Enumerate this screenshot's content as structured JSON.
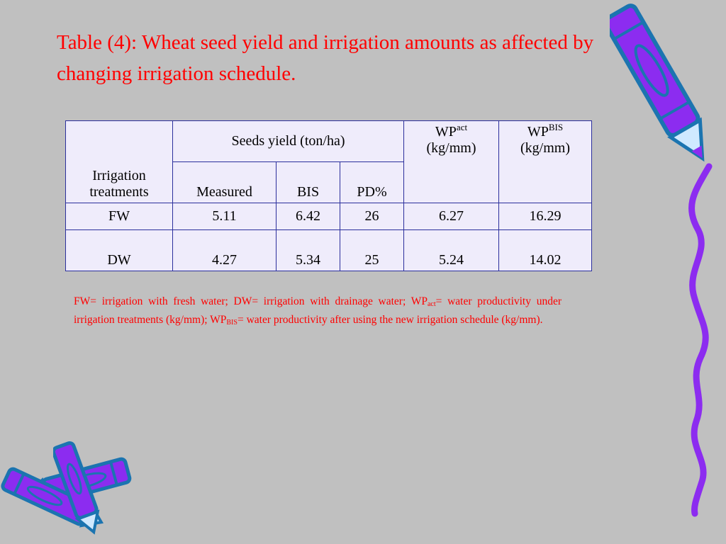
{
  "title": "Table (4): Wheat seed yield and irrigation amounts as affected by changing irrigation schedule.",
  "table": {
    "header": {
      "treatments": "Irrigation treatments",
      "seeds_yield": "Seeds yield (ton/ha)",
      "measured": "Measured",
      "bis": "BIS",
      "pd": "PD%",
      "wp_act_base": "WP",
      "wp_act_sub": "act",
      "wp_act_unit": "(kg/mm)",
      "wp_bis_base": "WP",
      "wp_bis_sub": "BIS",
      "wp_bis_unit": "(kg/mm)"
    },
    "rows": [
      {
        "treatment": "FW",
        "measured": "5.11",
        "bis": "6.42",
        "pd": "26",
        "wp_act": "6.27",
        "wp_bis": "16.29"
      },
      {
        "treatment": "DW",
        "measured": "4.27",
        "bis": "5.34",
        "pd": "25",
        "wp_act": "5.24",
        "wp_bis": "14.02"
      }
    ]
  },
  "footnote": {
    "part1": "FW= irrigation with fresh water; DW= irrigation with drainage water; WP",
    "sub1": "act",
    "part2": "= water productivity under irrigation treatments (kg/mm); WP",
    "sub2": "BIS",
    "part3": "= water productivity after using the new irrigation schedule (kg/mm)."
  },
  "colors": {
    "background": "#c0c0c0",
    "title": "#ff0000",
    "table_fill": "#efecfb",
    "table_border": "#2b2f9c",
    "crayon_purple": "#8c2cf0",
    "crayon_blue": "#1b74b0"
  },
  "decorations": [
    "crayon-icon",
    "crayon-icon",
    "crayon-icon",
    "squiggle-line-icon"
  ]
}
